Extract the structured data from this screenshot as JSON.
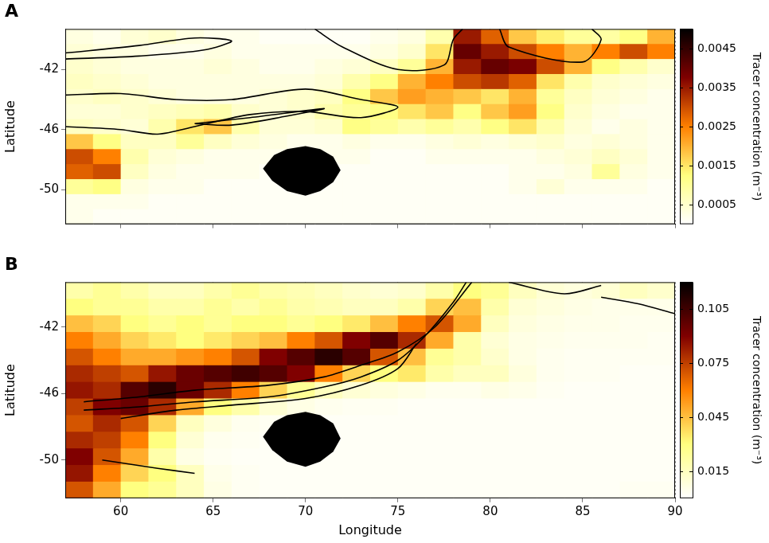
{
  "chart_data": [
    {
      "type": "heatmap",
      "panel": "A",
      "ylabel": "Latitude",
      "xlim": [
        57,
        90
      ],
      "ylim": [
        -52.3,
        -39.3
      ],
      "xticks": [
        60,
        65,
        70,
        75,
        80,
        85,
        90
      ],
      "yticks": [
        -50,
        -46,
        -42
      ],
      "grid": true,
      "tick_labels": "y",
      "colorbar_label": "Tracer concentration (m⁻³)",
      "color_range": [
        0,
        0.005
      ],
      "color_ticks": [
        0.0005,
        0.0015,
        0.0025,
        0.0035,
        0.0045
      ],
      "x": [
        57.75,
        59.25,
        60.75,
        62.25,
        63.75,
        65.25,
        66.75,
        68.25,
        69.75,
        71.25,
        72.75,
        74.25,
        75.75,
        77.25,
        78.75,
        80.25,
        81.75,
        83.25,
        84.75,
        86.25,
        87.75,
        89.25
      ],
      "y": [
        -39.8,
        -40.8,
        -41.8,
        -42.8,
        -43.8,
        -44.8,
        -45.8,
        -46.8,
        -47.8,
        -48.8,
        -49.8,
        -50.8,
        -51.8
      ],
      "cells": [
        [
          0.0003,
          0.0002,
          0.0004,
          0.0005,
          0.0003,
          0.0002,
          0.0002,
          0.0001,
          0.0001,
          0.0001,
          0.0001,
          0.0002,
          0.0003,
          0.0008,
          0.0035,
          0.0028,
          0.0018,
          0.0014,
          0.001,
          0.0009,
          0.0012,
          0.002
        ],
        [
          0.0004,
          0.0003,
          0.0003,
          0.0002,
          0.0002,
          0.0003,
          0.0002,
          0.0002,
          0.0002,
          0.0002,
          0.0002,
          0.0003,
          0.0005,
          0.0015,
          0.004,
          0.0035,
          0.003,
          0.0025,
          0.002,
          0.0025,
          0.003,
          0.0025
        ],
        [
          0.0005,
          0.0004,
          0.0003,
          0.0003,
          0.0003,
          0.0004,
          0.0003,
          0.0002,
          0.0002,
          0.0003,
          0.0004,
          0.0006,
          0.001,
          0.002,
          0.0035,
          0.004,
          0.0038,
          0.003,
          0.002,
          0.0012,
          0.0008,
          0.0005
        ],
        [
          0.0006,
          0.0005,
          0.0004,
          0.0003,
          0.0003,
          0.0003,
          0.0003,
          0.0003,
          0.0003,
          0.0004,
          0.0008,
          0.0012,
          0.002,
          0.0025,
          0.003,
          0.0032,
          0.0028,
          0.0015,
          0.0008,
          0.0005,
          0.0004,
          0.0003
        ],
        [
          0.0005,
          0.0006,
          0.0005,
          0.0004,
          0.0003,
          0.0003,
          0.0003,
          0.0004,
          0.0005,
          0.0006,
          0.0012,
          0.0018,
          0.0022,
          0.002,
          0.0018,
          0.0015,
          0.002,
          0.001,
          0.0006,
          0.0004,
          0.0003,
          0.0002
        ],
        [
          0.0004,
          0.0004,
          0.0005,
          0.0006,
          0.0007,
          0.0008,
          0.0005,
          0.0004,
          0.0005,
          0.0008,
          0.001,
          0.0012,
          0.0015,
          0.0018,
          0.0012,
          0.0018,
          0.0022,
          0.0012,
          0.0005,
          0.0003,
          0.0002,
          0.0002
        ],
        [
          0.0006,
          0.0005,
          0.0004,
          0.0008,
          0.0015,
          0.0018,
          0.0008,
          0.0004,
          0.0004,
          0.0005,
          0.0012,
          0.001,
          0.0008,
          0.001,
          0.0008,
          0.0012,
          0.0015,
          0.0008,
          0.0004,
          0.0002,
          0.0003,
          0.0002
        ],
        [
          0.0018,
          0.0012,
          0.0006,
          0.0006,
          0.001,
          0.0006,
          0.0004,
          0.0003,
          0.0002,
          0.0002,
          0.0003,
          0.0002,
          0.0002,
          0.0003,
          0.0004,
          0.0003,
          0.0004,
          0.0005,
          0.0003,
          0.0004,
          0.0003,
          0.0002
        ],
        [
          0.003,
          0.0025,
          0.0008,
          0.0004,
          0.0003,
          0.0002,
          0.0002,
          0.0002,
          0.0002,
          0.0002,
          0.0002,
          0.0001,
          0.0001,
          0.0002,
          0.0002,
          0.0002,
          0.0002,
          0.0003,
          0.0004,
          0.0006,
          0.0004,
          0.0002
        ],
        [
          0.0028,
          0.003,
          0.0006,
          0.0003,
          0.0002,
          0.0002,
          0.0002,
          0.0001,
          0.0001,
          0.0001,
          0.0001,
          0.0001,
          0.0001,
          0.0001,
          0.0001,
          0.0001,
          0.0002,
          0.0002,
          0.0003,
          0.001,
          0.0003,
          0.0002
        ],
        [
          0.001,
          0.0012,
          0.0003,
          0.0002,
          0.0002,
          0.0001,
          0.0001,
          0.0001,
          0.0001,
          0.0001,
          0.0001,
          0.0001,
          0.0001,
          0.0001,
          0.0001,
          0.0001,
          0.0002,
          0.0004,
          0.0002,
          0.0002,
          0.0002,
          0.0001
        ],
        [
          0.0002,
          0.0002,
          0.0002,
          0.0001,
          0.0001,
          0.0001,
          0.0001,
          0.0001,
          0.0001,
          0.0001,
          0.0001,
          0.0001,
          0.0001,
          0.0001,
          0.0001,
          0.0001,
          0.0001,
          0.0001,
          0.0001,
          0.0001,
          0.0001,
          0.0001
        ],
        [
          0.0002,
          0.0001,
          0.0001,
          0.0001,
          0.0001,
          0.0001,
          0.0001,
          0.0001,
          0.0001,
          0.0001,
          0.0001,
          0.0001,
          0.0001,
          0.0001,
          0.0001,
          0.0001,
          0.0001,
          0.0001,
          0.0001,
          0.0001,
          0.0001,
          0.0001
        ]
      ],
      "contours": [
        [
          [
            57,
            -40.9
          ],
          [
            61,
            -40.4
          ],
          [
            64,
            -39.9
          ],
          [
            66,
            -40.1
          ],
          [
            64.5,
            -40.7
          ],
          [
            61,
            -41.1
          ],
          [
            57,
            -41.3
          ]
        ],
        [
          [
            57,
            -43.7
          ],
          [
            60,
            -43.6
          ],
          [
            63,
            -44.0
          ],
          [
            66,
            -44.0
          ],
          [
            70,
            -43.3
          ],
          [
            73,
            -44.0
          ],
          [
            75,
            -44.5
          ],
          [
            73,
            -45.2
          ],
          [
            70,
            -44.8
          ],
          [
            67,
            -45.0
          ],
          [
            64,
            -45.8
          ],
          [
            62,
            -46.3
          ],
          [
            60,
            -46.0
          ],
          [
            57,
            -45.8
          ]
        ],
        [
          [
            64,
            -45.6
          ],
          [
            67,
            -45.2
          ],
          [
            71,
            -44.6
          ],
          [
            69,
            -45.1
          ],
          [
            66,
            -45.7
          ],
          [
            64,
            -45.6
          ]
        ],
        [
          [
            70.5,
            -39.3
          ],
          [
            72,
            -40.5
          ],
          [
            75,
            -42.0
          ],
          [
            77.5,
            -41.7
          ],
          [
            78,
            -40.0
          ],
          [
            78.5,
            -39.3
          ]
        ],
        [
          [
            80.5,
            -39.3
          ],
          [
            81,
            -40.5
          ],
          [
            85,
            -41.5
          ],
          [
            86,
            -40.0
          ],
          [
            85.5,
            -39.3
          ]
        ]
      ],
      "land": [
        [
          68.3,
          -47.7
        ],
        [
          69,
          -47.3
        ],
        [
          70,
          -47.1
        ],
        [
          70.8,
          -47.3
        ],
        [
          71.5,
          -47.8
        ],
        [
          71.9,
          -48.7
        ],
        [
          71.5,
          -49.5
        ],
        [
          70.8,
          -50.1
        ],
        [
          70,
          -50.4
        ],
        [
          69,
          -50.1
        ],
        [
          68.2,
          -49.4
        ],
        [
          67.7,
          -48.6
        ],
        [
          68.3,
          -47.7
        ]
      ]
    },
    {
      "type": "heatmap",
      "panel": "B",
      "xlabel": "Longitude",
      "ylabel": "Latitude",
      "xlim": [
        57,
        90
      ],
      "ylim": [
        -52.3,
        -39.3
      ],
      "xticks": [
        60,
        65,
        70,
        75,
        80,
        85,
        90
      ],
      "yticks": [
        -50,
        -46,
        -42
      ],
      "grid": true,
      "colorbar_label": "Tracer concentration (m⁻³)",
      "color_range": [
        0,
        0.12
      ],
      "color_ticks": [
        0.015,
        0.045,
        0.075,
        0.105
      ],
      "x": [
        57.75,
        59.25,
        60.75,
        62.25,
        63.75,
        65.25,
        66.75,
        68.25,
        69.75,
        71.25,
        72.75,
        74.25,
        75.75,
        77.25,
        78.75,
        80.25,
        81.75,
        83.25,
        84.75,
        86.25,
        87.75,
        89.25
      ],
      "y": [
        -39.8,
        -40.8,
        -41.8,
        -42.8,
        -43.8,
        -44.8,
        -45.8,
        -46.8,
        -47.8,
        -48.8,
        -49.8,
        -50.8,
        -51.8
      ],
      "cells": [
        [
          0.02,
          0.025,
          0.02,
          0.015,
          0.015,
          0.02,
          0.025,
          0.02,
          0.018,
          0.015,
          0.012,
          0.01,
          0.012,
          0.02,
          0.03,
          0.025,
          0.015,
          0.01,
          0.008,
          0.01,
          0.015,
          0.012
        ],
        [
          0.03,
          0.025,
          0.025,
          0.02,
          0.02,
          0.025,
          0.02,
          0.025,
          0.02,
          0.018,
          0.015,
          0.015,
          0.02,
          0.04,
          0.045,
          0.02,
          0.01,
          0.008,
          0.006,
          0.005,
          0.005,
          0.005
        ],
        [
          0.045,
          0.04,
          0.03,
          0.025,
          0.03,
          0.025,
          0.03,
          0.03,
          0.025,
          0.03,
          0.035,
          0.045,
          0.06,
          0.07,
          0.05,
          0.015,
          0.008,
          0.006,
          0.005,
          0.005,
          0.004,
          0.004
        ],
        [
          0.06,
          0.05,
          0.04,
          0.035,
          0.03,
          0.035,
          0.04,
          0.045,
          0.06,
          0.07,
          0.09,
          0.1,
          0.08,
          0.05,
          0.02,
          0.01,
          0.006,
          0.005,
          0.004,
          0.004,
          0.004,
          0.003
        ],
        [
          0.07,
          0.06,
          0.05,
          0.05,
          0.055,
          0.06,
          0.07,
          0.09,
          0.1,
          0.11,
          0.1,
          0.07,
          0.045,
          0.025,
          0.02,
          0.012,
          0.006,
          0.004,
          0.003,
          0.003,
          0.003,
          0.003
        ],
        [
          0.08,
          0.075,
          0.07,
          0.085,
          0.095,
          0.1,
          0.105,
          0.1,
          0.09,
          0.06,
          0.04,
          0.03,
          0.035,
          0.02,
          0.015,
          0.015,
          0.008,
          0.004,
          0.003,
          0.003,
          0.002,
          0.002
        ],
        [
          0.085,
          0.08,
          0.1,
          0.11,
          0.095,
          0.08,
          0.06,
          0.04,
          0.025,
          0.015,
          0.01,
          0.008,
          0.006,
          0.004,
          0.004,
          0.006,
          0.005,
          0.003,
          0.002,
          0.002,
          0.002,
          0.002
        ],
        [
          0.075,
          0.09,
          0.095,
          0.08,
          0.05,
          0.03,
          0.02,
          0.01,
          0.006,
          0.004,
          0.003,
          0.003,
          0.002,
          0.002,
          0.002,
          0.002,
          0.002,
          0.002,
          0.002,
          0.002,
          0.002,
          0.002
        ],
        [
          0.07,
          0.08,
          0.07,
          0.04,
          0.015,
          0.008,
          0.004,
          0.003,
          0.002,
          0.002,
          0.002,
          0.002,
          0.002,
          0.002,
          0.002,
          0.002,
          0.002,
          0.002,
          0.002,
          0.002,
          0.002,
          0.002
        ],
        [
          0.08,
          0.075,
          0.06,
          0.03,
          0.01,
          0.004,
          0.003,
          0.002,
          0.002,
          0.002,
          0.002,
          0.002,
          0.002,
          0.002,
          0.002,
          0.002,
          0.002,
          0.002,
          0.002,
          0.002,
          0.002,
          0.002
        ],
        [
          0.09,
          0.07,
          0.05,
          0.02,
          0.006,
          0.003,
          0.002,
          0.002,
          0.002,
          0.002,
          0.002,
          0.002,
          0.002,
          0.002,
          0.002,
          0.002,
          0.002,
          0.002,
          0.002,
          0.002,
          0.002,
          0.002
        ],
        [
          0.085,
          0.06,
          0.04,
          0.03,
          0.015,
          0.005,
          0.003,
          0.002,
          0.002,
          0.002,
          0.002,
          0.002,
          0.002,
          0.002,
          0.002,
          0.002,
          0.002,
          0.002,
          0.002,
          0.002,
          0.002,
          0.002
        ],
        [
          0.07,
          0.05,
          0.03,
          0.025,
          0.015,
          0.006,
          0.003,
          0.002,
          0.002,
          0.002,
          0.002,
          0.002,
          0.002,
          0.002,
          0.002,
          0.002,
          0.002,
          0.002,
          0.002,
          0.002,
          0.003,
          0.003
        ]
      ],
      "contours": [
        [
          [
            58,
            -46.5
          ],
          [
            61,
            -46.2
          ],
          [
            64,
            -45.8
          ],
          [
            68,
            -45.5
          ],
          [
            71,
            -45.0
          ],
          [
            73,
            -44.3
          ],
          [
            75,
            -43.5
          ],
          [
            77,
            -42.0
          ],
          [
            79,
            -39.3
          ]
        ],
        [
          [
            58,
            -47.0
          ],
          [
            61,
            -46.8
          ],
          [
            64,
            -46.5
          ],
          [
            68,
            -46.2
          ],
          [
            71,
            -45.6
          ],
          [
            73,
            -45.0
          ],
          [
            75,
            -44.0
          ],
          [
            76.5,
            -42.5
          ],
          [
            78,
            -40.5
          ],
          [
            78.7,
            -39.3
          ]
        ],
        [
          [
            60,
            -47.5
          ],
          [
            63,
            -47.0
          ],
          [
            66,
            -46.7
          ],
          [
            70,
            -46.3
          ],
          [
            73,
            -45.5
          ],
          [
            75,
            -44.5
          ],
          [
            76,
            -43.0
          ]
        ],
        [
          [
            59,
            -50.0
          ],
          [
            62,
            -50.5
          ],
          [
            64,
            -50.8
          ]
        ],
        [
          [
            81,
            -39.3
          ],
          [
            84,
            -40.0
          ],
          [
            86,
            -39.5
          ]
        ],
        [
          [
            86,
            -40.2
          ],
          [
            88,
            -40.6
          ],
          [
            90,
            -41.2
          ]
        ]
      ],
      "land": [
        [
          68.3,
          -47.7
        ],
        [
          69,
          -47.3
        ],
        [
          70,
          -47.1
        ],
        [
          70.8,
          -47.3
        ],
        [
          71.5,
          -47.8
        ],
        [
          71.9,
          -48.7
        ],
        [
          71.5,
          -49.5
        ],
        [
          70.8,
          -50.1
        ],
        [
          70,
          -50.4
        ],
        [
          69,
          -50.1
        ],
        [
          68.2,
          -49.4
        ],
        [
          67.7,
          -48.6
        ],
        [
          68.3,
          -47.7
        ]
      ]
    }
  ]
}
